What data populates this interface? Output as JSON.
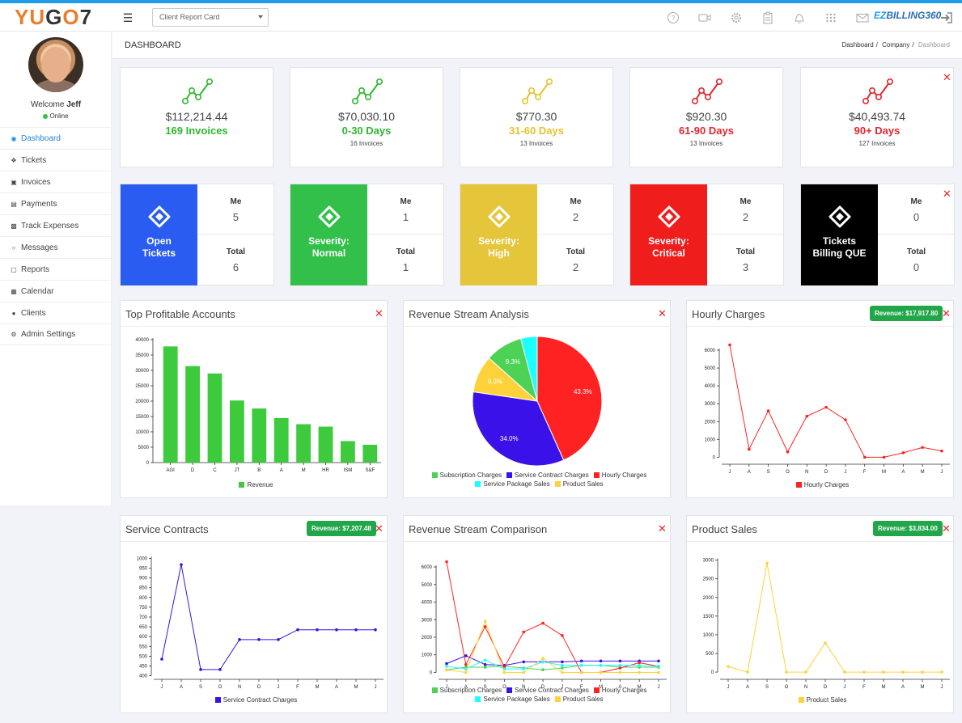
{
  "header": {
    "logo_a": "YU",
    "logo_b": "G",
    "logo_c": "O",
    "logo_d": "7",
    "menu_icon": "hamburger-icon",
    "report_select": "Client Report Card",
    "brand_a": "EZ",
    "brand_b": "BILLING360",
    "icons": [
      "help-icon",
      "video-icon",
      "gear-icon",
      "clipboard-icon",
      "bell-icon",
      "apps-grid-icon",
      "mail-icon"
    ],
    "logout_icon": "logout-icon"
  },
  "user": {
    "welcome": "Welcome",
    "name": "Jeff",
    "status": "Online"
  },
  "sidebar": {
    "items": [
      {
        "label": "Dashboard",
        "icon": "dashboard-icon"
      },
      {
        "label": "Tickets",
        "icon": "ticket-icon"
      },
      {
        "label": "Invoices",
        "icon": "invoice-icon"
      },
      {
        "label": "Payments",
        "icon": "payment-icon"
      },
      {
        "label": "Track Expenses",
        "icon": "expense-icon"
      },
      {
        "label": "Messages",
        "icon": "message-icon"
      },
      {
        "label": "Reports",
        "icon": "report-icon"
      },
      {
        "label": "Calendar",
        "icon": "calendar-icon"
      },
      {
        "label": "Clients",
        "icon": "clients-icon"
      },
      {
        "label": "Admin Settings",
        "icon": "gear-icon"
      }
    ]
  },
  "page": {
    "title": "DASHBOARD",
    "breadcrumbs": [
      "Dashboard",
      "Company",
      "Dashboard"
    ]
  },
  "invoice_stats": [
    {
      "amount": "$112,214.44",
      "label": "169 Invoices",
      "sub": "",
      "color": "#2eb82e"
    },
    {
      "amount": "$70,030.10",
      "label": "0-30 Days",
      "sub": "16 Invoices",
      "color": "#2eb82e"
    },
    {
      "amount": "$770.30",
      "label": "31-60 Days",
      "sub": "13 Invoices",
      "color": "#e6c32e"
    },
    {
      "amount": "$920.30",
      "label": "61-90 Days",
      "sub": "13 Invoices",
      "color": "#e3262c"
    },
    {
      "amount": "$40,493.74",
      "label": "90+ Days",
      "sub": "127 Invoices",
      "color": "#e3262c"
    }
  ],
  "tickets": [
    {
      "title_a": "Open",
      "title_b": "Tickets",
      "me_label": "Me",
      "me": "5",
      "total_label": "Total",
      "total": "6",
      "color": "#2b5cf2"
    },
    {
      "title_a": "Severity:",
      "title_b": "Normal",
      "me_label": "Me",
      "me": "1",
      "total_label": "Total",
      "total": "1",
      "color": "#33c04a"
    },
    {
      "title_a": "Severity:",
      "title_b": "High",
      "me_label": "Me",
      "me": "2",
      "total_label": "Total",
      "total": "2",
      "color": "#e5c53a"
    },
    {
      "title_a": "Severity:",
      "title_b": "Critical",
      "me_label": "Me",
      "me": "2",
      "total_label": "Total",
      "total": "3",
      "color": "#f01d1d"
    },
    {
      "title_a": "Tickets",
      "title_b": "Billing QUE",
      "me_label": "Me",
      "me": "0",
      "total_label": "Total",
      "total": "0",
      "color": "#000000"
    }
  ],
  "panels": {
    "top_profitable": {
      "title": "Top Profitable Accounts"
    },
    "revenue_stream": {
      "title": "Revenue Stream Analysis"
    },
    "hourly": {
      "title": "Hourly Charges",
      "badge": "Revenue: $17,917.80"
    },
    "service_contracts": {
      "title": "Service Contracts",
      "badge": "Revenue: $7,207.48"
    },
    "stream_comparison": {
      "title": "Revenue Stream Comparison"
    },
    "product_sales": {
      "title": "Product Sales",
      "badge": "Revenue: $3,834.00"
    }
  },
  "chart_data": [
    {
      "type": "bar",
      "title": "",
      "categories": [
        "AGI",
        "D",
        "C",
        "JT",
        "B",
        "A",
        "M",
        "HR",
        "ISM",
        "S&F"
      ],
      "series": [
        {
          "name": "Revenue",
          "color": "#3dcb3d",
          "values": [
            37800,
            31400,
            29000,
            20200,
            17600,
            14500,
            12500,
            11700,
            7000,
            5800
          ]
        }
      ],
      "yticks": [
        0,
        5000,
        10000,
        15000,
        20000,
        25000,
        30000,
        35000,
        40000
      ],
      "ylim": [
        0,
        40000
      ]
    },
    {
      "type": "pie",
      "title": "",
      "slices": [
        {
          "name": "Hourly Charges",
          "value": 43.3,
          "label": "43.3%",
          "color": "#ff2222"
        },
        {
          "name": "Service Contract Charges",
          "value": 34.0,
          "label": "34.0%",
          "color": "#3a11e8"
        },
        {
          "name": "Product Sales",
          "value": 9.3,
          "label": "9.3%",
          "color": "#ffd23c"
        },
        {
          "name": "Subscription Charges",
          "value": 9.3,
          "label": "9.3%",
          "color": "#4cd254"
        },
        {
          "name": "Service Package Sales",
          "value": 4.1,
          "label": "",
          "color": "#1affff"
        }
      ],
      "legend": [
        "Subscription Charges",
        "Service Contract Charges",
        "Hourly Charges",
        "Service Package Sales",
        "Product Sales"
      ]
    },
    {
      "type": "line",
      "title": "",
      "categories": [
        "J",
        "A",
        "S",
        "O",
        "N",
        "D",
        "J",
        "F",
        "M",
        "A",
        "M",
        "J"
      ],
      "series": [
        {
          "name": "Hourly Charges",
          "color": "#ff2222",
          "values": [
            6300,
            450,
            2600,
            300,
            2300,
            2800,
            2100,
            0,
            0,
            250,
            550,
            350
          ]
        }
      ],
      "yticks": [
        0,
        1000,
        2000,
        3000,
        4000,
        5000,
        6000
      ],
      "ylim": [
        -300,
        6500
      ]
    },
    {
      "type": "line",
      "title": "",
      "categories": [
        "J",
        "A",
        "S",
        "O",
        "N",
        "D",
        "J",
        "F",
        "M",
        "A",
        "M",
        "J"
      ],
      "series": [
        {
          "name": "Service Contract Charges",
          "color": "#3a11e8",
          "values": [
            485,
            968,
            432,
            432,
            585,
            585,
            585,
            635,
            635,
            635,
            635,
            635
          ]
        }
      ],
      "yticks": [
        400,
        450,
        500,
        550,
        600,
        650,
        700,
        750,
        800,
        850,
        900,
        950,
        1000
      ],
      "ylim": [
        390,
        1010
      ]
    },
    {
      "type": "line",
      "title": "",
      "categories": [
        "J",
        "A",
        "S",
        "O",
        "N",
        "D",
        "J",
        "F",
        "M",
        "A",
        "M",
        "J"
      ],
      "series": [
        {
          "name": "Subscription Charges",
          "color": "#4cd254",
          "values": [
            150,
            300,
            300,
            350,
            250,
            150,
            250,
            400,
            400,
            300,
            300,
            300
          ]
        },
        {
          "name": "Service Contract Charges",
          "color": "#3a11e8",
          "values": [
            500,
            950,
            450,
            400,
            600,
            600,
            600,
            650,
            650,
            650,
            650,
            650
          ]
        },
        {
          "name": "Hourly Charges",
          "color": "#ff2222",
          "values": [
            6300,
            450,
            2600,
            300,
            2300,
            2800,
            2100,
            0,
            0,
            250,
            550,
            350
          ]
        },
        {
          "name": "Service Package Sales",
          "color": "#1affff",
          "values": [
            350,
            200,
            700,
            200,
            200,
            600,
            400,
            400,
            400,
            400,
            400,
            350
          ]
        },
        {
          "name": "Product Sales",
          "color": "#ffd23c",
          "values": [
            150,
            0,
            2900,
            0,
            0,
            800,
            0,
            0,
            0,
            0,
            0,
            0
          ]
        }
      ],
      "legend": [
        "Subscription Charges",
        "Service Contract Charges",
        "Hourly Charges",
        "Service Package Sales",
        "Product Sales"
      ],
      "yticks": [
        0,
        1000,
        2000,
        3000,
        4000,
        5000,
        6000
      ],
      "ylim": [
        -300,
        6600
      ]
    },
    {
      "type": "line",
      "title": "",
      "categories": [
        "J",
        "A",
        "S",
        "O",
        "N",
        "D",
        "J",
        "F",
        "M",
        "A",
        "M",
        "J"
      ],
      "series": [
        {
          "name": "Product Sales",
          "color": "#ffd23c",
          "values": [
            150,
            0,
            2920,
            0,
            0,
            780,
            0,
            0,
            0,
            0,
            0,
            0
          ]
        }
      ],
      "yticks": [
        0,
        500,
        1000,
        1500,
        2000,
        2500,
        3000
      ],
      "ylim": [
        -150,
        3100
      ]
    }
  ]
}
